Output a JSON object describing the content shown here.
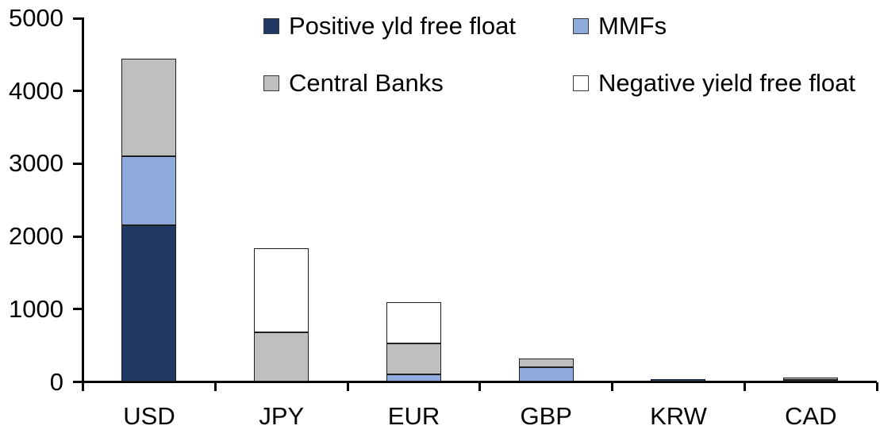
{
  "chart_data": {
    "type": "bar",
    "stacked": true,
    "title": "",
    "xlabel": "",
    "ylabel": "",
    "categories": [
      "USD",
      "JPY",
      "EUR",
      "GBP",
      "KRW",
      "CAD"
    ],
    "series": [
      {
        "name": "Positive yld free float",
        "color": "#1F3864",
        "values": [
          2150,
          0,
          0,
          0,
          40,
          25
        ]
      },
      {
        "name": "MMFs",
        "color": "#8FAADC",
        "values": [
          950,
          0,
          100,
          200,
          0,
          0
        ]
      },
      {
        "name": "Central Banks",
        "color": "#BFBFBF",
        "values": [
          1340,
          680,
          425,
          120,
          0,
          35
        ]
      },
      {
        "name": "Negative yield free float",
        "color": "#FFFFFF",
        "values": [
          0,
          1160,
          575,
          0,
          0,
          0
        ]
      }
    ],
    "totals": {
      "USD": 4440,
      "JPY": 1840,
      "EUR": 1100,
      "GBP": 320,
      "KRW": 40,
      "CAD": 60
    },
    "ylim": [
      0,
      5000
    ],
    "yticks": [
      0,
      1000,
      2000,
      3000,
      4000,
      5000
    ],
    "ytick_labels": [
      "0",
      "1000",
      "2000",
      "3000",
      "4000",
      "5000"
    ],
    "grid": false,
    "legend_position": "top",
    "axis_color": "#000000",
    "background_color": "#FFFFFF"
  }
}
